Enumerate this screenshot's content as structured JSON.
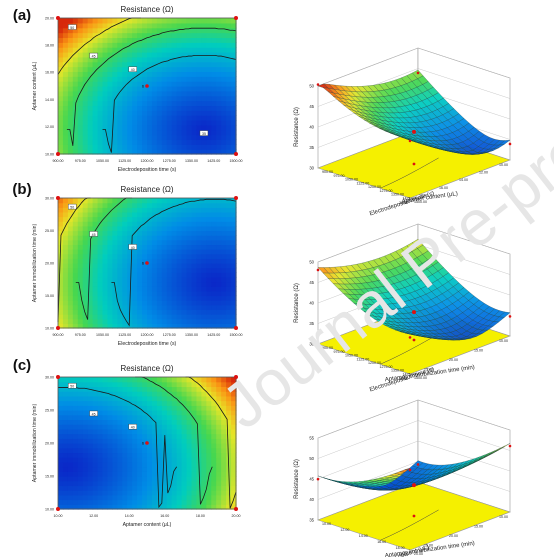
{
  "watermark": "Journal Pre-proofs",
  "chart_data": [
    {
      "type": "heatmap",
      "panel": "(a)",
      "title": "Resistance (Ω)",
      "xlabel": "Electrodeposition time (s)",
      "ylabel": "Aptamer content (μL)",
      "x_ticks": [
        "900.00",
        "975.00",
        "1050.00",
        "1125.00",
        "1200.00",
        "1275.00",
        "1350.00",
        "1425.00",
        "1500.00"
      ],
      "y_ticks": [
        "10.00",
        "12.00",
        "14.00",
        "16.00",
        "18.00",
        "20.00"
      ],
      "xlim": [
        900,
        1500
      ],
      "ylim": [
        10,
        20
      ],
      "contour_labels": [
        "50",
        "45",
        "40",
        "35"
      ],
      "design_points": [
        {
          "x": 1200,
          "y": 15,
          "label": "6"
        }
      ]
    },
    {
      "type": "surface",
      "panel": "(a)",
      "zlabel": "Resistance (Ω)",
      "z_ticks": [
        "30",
        "35",
        "40",
        "45",
        "50"
      ],
      "axis1_label": "Aptamer content (μL)",
      "axis1_ticks": [
        "10.00",
        "12.00",
        "14.00",
        "16.00",
        "18.00",
        "20.00"
      ],
      "axis2_label": "Electrodeposition time (s)",
      "axis2_ticks": [
        "900.00",
        "975.00",
        "1050.00",
        "1125.00",
        "1200.00",
        "1275.00",
        "1350.00",
        "1425.00",
        "1500.00"
      ],
      "zlim": [
        30,
        50
      ]
    },
    {
      "type": "heatmap",
      "panel": "(b)",
      "title": "Resistance (Ω)",
      "xlabel": "Electrodeposition time (s)",
      "ylabel": "Aptamer immobilization time (min)",
      "x_ticks": [
        "900.00",
        "975.00",
        "1050.00",
        "1125.00",
        "1200.00",
        "1275.00",
        "1350.00",
        "1425.00",
        "1500.00"
      ],
      "y_ticks": [
        "10.00",
        "15.00",
        "20.00",
        "25.00",
        "30.00"
      ],
      "xlim": [
        900,
        1500
      ],
      "ylim": [
        10,
        30
      ],
      "contour_labels": [
        "50",
        "45",
        "40"
      ],
      "design_points": [
        {
          "x": 1200,
          "y": 20,
          "label": "6"
        }
      ]
    },
    {
      "type": "surface",
      "panel": "(b)",
      "zlabel": "Resistance (Ω)",
      "z_ticks": [
        "30",
        "35",
        "40",
        "45",
        "50"
      ],
      "axis1_label": "Aptamer immobilization time (min)",
      "axis1_ticks": [
        "10.00",
        "15.00",
        "20.00",
        "25.00",
        "30.00"
      ],
      "axis2_label": "Electrodeposition time (s)",
      "axis2_ticks": [
        "900.00",
        "975.00",
        "1050.00",
        "1125.00",
        "1200.00",
        "1275.00",
        "1350.00",
        "1425.00",
        "1500.00"
      ],
      "zlim": [
        30,
        50
      ]
    },
    {
      "type": "heatmap",
      "panel": "(c)",
      "title": "Resistance (Ω)",
      "xlabel": "Aptamer content (μL)",
      "ylabel": "Aptamer immobilization time (min)",
      "x_ticks": [
        "10.00",
        "12.00",
        "14.00",
        "16.00",
        "18.00",
        "20.00"
      ],
      "y_ticks": [
        "10.00",
        "15.00",
        "20.00",
        "25.00",
        "30.00"
      ],
      "xlim": [
        10,
        20
      ],
      "ylim": [
        10,
        30
      ],
      "contour_labels": [
        "50",
        "45",
        "40"
      ],
      "design_points": [
        {
          "x": 15,
          "y": 20,
          "label": "6"
        }
      ]
    },
    {
      "type": "surface",
      "panel": "(c)",
      "zlabel": "Resistance (Ω)",
      "z_ticks": [
        "35",
        "40",
        "45",
        "50",
        "55"
      ],
      "axis1_label": "Aptamer immobilization time (min)",
      "axis1_ticks": [
        "10.00",
        "15.00",
        "20.00",
        "25.00",
        "30.00"
      ],
      "axis2_label": "Aptamer content (μL)",
      "axis2_ticks": [
        "10.00",
        "12.00",
        "14.00",
        "16.00",
        "18.00",
        "20.00"
      ],
      "zlim": [
        35,
        55
      ]
    }
  ]
}
